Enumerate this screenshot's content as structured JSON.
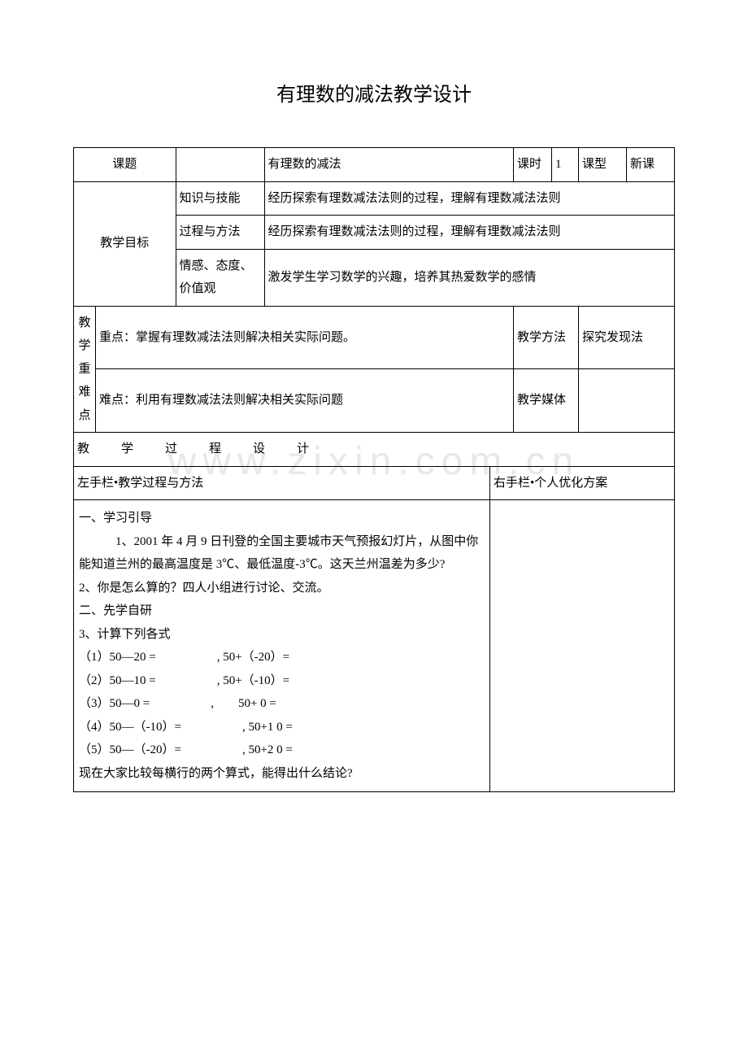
{
  "title": "有理数的减法教学设计",
  "watermark": "www.zixin.com.cn",
  "row1": {
    "label_keti": "课题",
    "topic": "有理数的减法",
    "label_keshi": "课时",
    "keshi_val": "1",
    "label_kexing": "课型",
    "kexing_val": "新课"
  },
  "goals": {
    "header": "教学目标",
    "r1_label": "知识与技能",
    "r1_text": "经历探索有理数减法法则的过程，理解有理数减法法则",
    "r2_label": "过程与方法",
    "r2_text": "经历探索有理数减法法则的过程，理解有理数减法法则",
    "r3_label": "情感、态度、价值观",
    "r3_text": "激发学生学习数学的兴趣，培养其热爱数学的感情"
  },
  "difficulty": {
    "header": "教学重难点",
    "keypoint": "重点：掌握有理数减法法则解决相关实际问题。",
    "hardpoint": "难点：利用有理数减法法则解决相关实际问题",
    "method_label": "教学方法",
    "method_val": "探究发现法",
    "media_label": "教学媒体",
    "media_val": ""
  },
  "process_header": "教　学　过　程　设　计",
  "columns": {
    "left": "左手栏•教学过程与方法",
    "right": "右手栏•个人优化方案"
  },
  "body_lines": [
    "一、学习引导",
    "　　　1、2001 年 4 月 9 日刊登的全国主要城市天气预报幻灯片，从图中你能知道兰州的最高温度是 3℃、最低温度-3℃。这天兰州温差为多少?",
    "2、你是怎么算的？四人小组进行讨论、交流。",
    "二、先学自研",
    "3、计算下列各式",
    "（1）50—20 =　　　　　, 50+（-20）=　　　　　",
    "（2）50—10 =　　　　　, 50+（-10）=　　　　　",
    "（3）50—0 =　　　　　,　　50+ 0 =　　　　　",
    "（4）50—（-10）=　　　　　, 50+1 0 =　　　　　",
    "（5）50—（-20）=　　　　　, 50+2 0 =　　　　　",
    "现在大家比较每横行的两个算式，能得出什么结论?"
  ]
}
